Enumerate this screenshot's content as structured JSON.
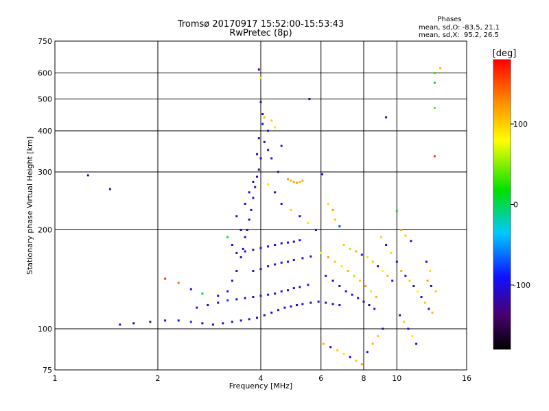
{
  "chart_data": {
    "type": "scatter",
    "title": "Tromsø 20170917 15:52:00-15:53:43",
    "subtitle": "RwPretec (8p)",
    "xlabel": "Frequency [MHz]",
    "ylabel": "Stationary phase Virtual Height [km]",
    "x_scale": "log",
    "y_scale": "log",
    "xlim": [
      1,
      16
    ],
    "ylim": [
      75,
      750
    ],
    "x_ticks": [
      1,
      2,
      4,
      6,
      8,
      10,
      16
    ],
    "x_tick_labels": [
      "1",
      "2",
      "4",
      "6",
      "8",
      "10",
      "16"
    ],
    "y_ticks": [
      75,
      100,
      200,
      300,
      400,
      500,
      600,
      750
    ],
    "y_tick_labels": [
      "75",
      "100",
      "200",
      "300",
      "400",
      "500",
      "600",
      "750"
    ],
    "grid": true,
    "info": {
      "heading": "Phases",
      "line_o": "mean, sd,O: -83.5, 21.1",
      "line_x": "mean, sd,X:  95.2, 26.5"
    },
    "colorbar": {
      "label": "[deg]",
      "min": -180,
      "max": 180,
      "ticks": [
        100,
        0,
        -100
      ],
      "tick_labels": [
        "100",
        "0",
        "-100"
      ]
    },
    "series": [
      {
        "points": [
          [
            1.25,
            293,
            -110
          ],
          [
            1.45,
            266,
            -120
          ],
          [
            3.95,
            615,
            -130
          ],
          [
            5.55,
            500,
            -120
          ],
          [
            9.3,
            440,
            -130
          ],
          [
            4.0,
            580,
            90
          ],
          [
            4.0,
            490,
            -120
          ],
          [
            4.05,
            450,
            -110
          ],
          [
            4.05,
            420,
            -100
          ],
          [
            4.1,
            440,
            110
          ],
          [
            4.2,
            400,
            -100
          ],
          [
            4.3,
            430,
            100
          ],
          [
            4.4,
            410,
            90
          ],
          [
            4.1,
            370,
            -110
          ],
          [
            4.2,
            350,
            -100
          ],
          [
            4.0,
            330,
            -110
          ],
          [
            3.95,
            305,
            -120
          ],
          [
            3.9,
            290,
            -120
          ],
          [
            3.85,
            270,
            -110
          ],
          [
            3.8,
            250,
            -100
          ],
          [
            3.75,
            230,
            -110
          ],
          [
            3.7,
            215,
            -110
          ],
          [
            3.65,
            200,
            -100
          ],
          [
            3.6,
            190,
            -110
          ],
          [
            3.55,
            175,
            -100
          ],
          [
            3.5,
            165,
            -110
          ],
          [
            3.4,
            150,
            -100
          ],
          [
            3.3,
            140,
            -110
          ],
          [
            3.2,
            130,
            -100
          ],
          [
            4.8,
            285,
            120
          ],
          [
            4.9,
            282,
            110
          ],
          [
            5.0,
            280,
            115
          ],
          [
            5.1,
            278,
            120
          ],
          [
            5.2,
            280,
            110
          ],
          [
            5.3,
            282,
            115
          ],
          [
            6.05,
            295,
            -100
          ],
          [
            6.3,
            240,
            90
          ],
          [
            6.5,
            230,
            120
          ],
          [
            6.6,
            215,
            100
          ],
          [
            6.8,
            205,
            -80
          ],
          [
            1.55,
            103,
            -100
          ],
          [
            1.7,
            104,
            -110
          ],
          [
            1.9,
            105,
            -120
          ],
          [
            2.1,
            106,
            -100
          ],
          [
            2.3,
            106,
            -90
          ],
          [
            2.5,
            105,
            -80
          ],
          [
            2.7,
            104,
            -100
          ],
          [
            2.9,
            103,
            -110
          ],
          [
            3.1,
            104,
            -120
          ],
          [
            3.3,
            105,
            -100
          ],
          [
            3.5,
            106,
            -90
          ],
          [
            3.7,
            107,
            -110
          ],
          [
            3.9,
            108,
            -100
          ],
          [
            4.1,
            110,
            -120
          ],
          [
            4.3,
            112,
            -100
          ],
          [
            4.5,
            114,
            -110
          ],
          [
            4.7,
            116,
            -100
          ],
          [
            4.9,
            117,
            -90
          ],
          [
            5.1,
            118,
            -110
          ],
          [
            5.3,
            119,
            -100
          ],
          [
            5.6,
            120,
            -120
          ],
          [
            5.9,
            121,
            -100
          ],
          [
            6.2,
            120,
            -110
          ],
          [
            6.5,
            119,
            -100
          ],
          [
            6.8,
            118,
            -90
          ],
          [
            2.6,
            116,
            -100
          ],
          [
            2.8,
            118,
            -110
          ],
          [
            3.0,
            120,
            -100
          ],
          [
            3.2,
            122,
            -80
          ],
          [
            3.4,
            123,
            -100
          ],
          [
            3.6,
            124,
            -110
          ],
          [
            3.8,
            125,
            -100
          ],
          [
            4.0,
            126,
            -120
          ],
          [
            4.2,
            127,
            -100
          ],
          [
            4.4,
            128,
            -110
          ],
          [
            4.6,
            130,
            -90
          ],
          [
            4.8,
            131,
            -100
          ],
          [
            5.0,
            133,
            -110
          ],
          [
            5.2,
            134,
            -100
          ],
          [
            5.5,
            136,
            -90
          ],
          [
            3.4,
            170,
            -110
          ],
          [
            3.6,
            172,
            -100
          ],
          [
            3.8,
            174,
            -120
          ],
          [
            4.0,
            176,
            -110
          ],
          [
            4.2,
            178,
            -100
          ],
          [
            4.4,
            180,
            -90
          ],
          [
            4.6,
            182,
            -110
          ],
          [
            4.8,
            183,
            -100
          ],
          [
            5.0,
            184,
            -120
          ],
          [
            5.2,
            186,
            -100
          ],
          [
            3.8,
            150,
            -100
          ],
          [
            4.0,
            152,
            -110
          ],
          [
            4.2,
            155,
            -100
          ],
          [
            4.4,
            157,
            -90
          ],
          [
            4.6,
            159,
            -110
          ],
          [
            4.8,
            160,
            -100
          ],
          [
            5.0,
            162,
            -110
          ],
          [
            5.3,
            164,
            -100
          ],
          [
            5.6,
            166,
            -90
          ],
          [
            6.0,
            170,
            80
          ],
          [
            6.3,
            165,
            120
          ],
          [
            6.6,
            160,
            100
          ],
          [
            6.9,
            155,
            90
          ],
          [
            7.2,
            150,
            110
          ],
          [
            7.5,
            145,
            60
          ],
          [
            7.8,
            140,
            100
          ],
          [
            8.1,
            135,
            120
          ],
          [
            8.4,
            130,
            90
          ],
          [
            8.7,
            125,
            110
          ],
          [
            6.2,
            145,
            -100
          ],
          [
            6.5,
            140,
            -110
          ],
          [
            6.8,
            135,
            -120
          ],
          [
            7.1,
            130,
            -100
          ],
          [
            7.4,
            127,
            -90
          ],
          [
            7.7,
            124,
            -110
          ],
          [
            8.0,
            121,
            -100
          ],
          [
            8.3,
            118,
            -120
          ],
          [
            8.6,
            115,
            -100
          ],
          [
            9.0,
            190,
            100
          ],
          [
            9.3,
            180,
            -100
          ],
          [
            9.6,
            170,
            90
          ],
          [
            10.0,
            160,
            -110
          ],
          [
            10.3,
            150,
            110
          ],
          [
            10.6,
            145,
            -100
          ],
          [
            10.9,
            140,
            100
          ],
          [
            11.2,
            135,
            -110
          ],
          [
            11.5,
            130,
            80
          ],
          [
            11.8,
            125,
            -90
          ],
          [
            12.1,
            120,
            100
          ],
          [
            12.4,
            115,
            -100
          ],
          [
            12.7,
            112,
            110
          ],
          [
            10.2,
            110,
            -120
          ],
          [
            10.5,
            105,
            100
          ],
          [
            10.8,
            100,
            -100
          ],
          [
            11.1,
            95,
            90
          ],
          [
            11.4,
            90,
            -110
          ],
          [
            6.1,
            90,
            110
          ],
          [
            6.4,
            88,
            -100
          ],
          [
            6.7,
            86,
            100
          ],
          [
            7.0,
            84,
            90
          ],
          [
            7.3,
            82,
            -110
          ],
          [
            7.6,
            80,
            100
          ],
          [
            7.9,
            78,
            120
          ],
          [
            8.2,
            85,
            -100
          ],
          [
            8.5,
            90,
            110
          ],
          [
            8.8,
            95,
            100
          ],
          [
            9.1,
            100,
            -120
          ],
          [
            12.9,
            600,
            30
          ],
          [
            12.9,
            560,
            20
          ],
          [
            12.9,
            470,
            40
          ],
          [
            12.9,
            335,
            160
          ],
          [
            13.4,
            620,
            110
          ],
          [
            10.0,
            228,
            10
          ],
          [
            10.3,
            200,
            120
          ],
          [
            10.6,
            192,
            100
          ],
          [
            11.0,
            185,
            -100
          ],
          [
            2.3,
            138,
            140
          ],
          [
            2.5,
            132,
            -100
          ],
          [
            2.7,
            128,
            10
          ],
          [
            3.0,
            126,
            -110
          ],
          [
            2.1,
            142,
            160
          ],
          [
            5.8,
            200,
            -100
          ],
          [
            5.5,
            210,
            90
          ],
          [
            5.2,
            220,
            -110
          ],
          [
            4.9,
            230,
            100
          ],
          [
            4.6,
            240,
            -100
          ],
          [
            4.4,
            260,
            -110
          ],
          [
            4.2,
            275,
            90
          ],
          [
            4.5,
            300,
            -100
          ],
          [
            4.3,
            330,
            -110
          ],
          [
            4.6,
            360,
            -100
          ],
          [
            3.3,
            180,
            -100
          ],
          [
            3.2,
            190,
            10
          ],
          [
            3.5,
            200,
            -110
          ],
          [
            3.4,
            220,
            -100
          ],
          [
            3.6,
            240,
            -110
          ],
          [
            3.7,
            260,
            -100
          ],
          [
            3.8,
            280,
            -120
          ],
          [
            3.9,
            340,
            -100
          ],
          [
            3.95,
            380,
            -110
          ],
          [
            7.0,
            180,
            100
          ],
          [
            7.3,
            175,
            60
          ],
          [
            7.6,
            172,
            110
          ],
          [
            7.9,
            168,
            -100
          ],
          [
            8.2,
            165,
            90
          ],
          [
            8.5,
            160,
            100
          ],
          [
            8.8,
            155,
            -110
          ],
          [
            9.1,
            150,
            80
          ],
          [
            9.4,
            145,
            110
          ],
          [
            9.7,
            140,
            -100
          ],
          [
            12.3,
            140,
            120
          ],
          [
            12.6,
            135,
            -100
          ],
          [
            13.0,
            130,
            100
          ],
          [
            12.2,
            160,
            -110
          ],
          [
            12.5,
            150,
            90
          ]
        ]
      }
    ]
  }
}
